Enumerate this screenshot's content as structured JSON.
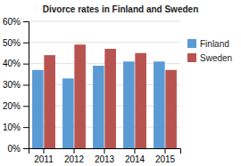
{
  "chart_data": {
    "type": "bar",
    "title": "Divorce rates in Finland and Sweden",
    "categories": [
      "2011",
      "2012",
      "2013",
      "2014",
      "2015"
    ],
    "series": [
      {
        "name": "Finland",
        "color": "#5b9bd5",
        "values": [
          37,
          33,
          39,
          41,
          41
        ]
      },
      {
        "name": "Sweden",
        "color": "#b85450",
        "values": [
          44,
          49,
          47,
          45,
          37
        ]
      }
    ],
    "ylim": [
      0,
      60
    ],
    "yticks": [
      {
        "value": 0,
        "label": "0%"
      },
      {
        "value": 10,
        "label": "10%"
      },
      {
        "value": 20,
        "label": "20%"
      },
      {
        "value": 30,
        "label": "30%"
      },
      {
        "value": 40,
        "label": "40%"
      },
      {
        "value": 50,
        "label": "50%"
      },
      {
        "value": 60,
        "label": "60%"
      }
    ],
    "grid": true,
    "legend": "right"
  }
}
